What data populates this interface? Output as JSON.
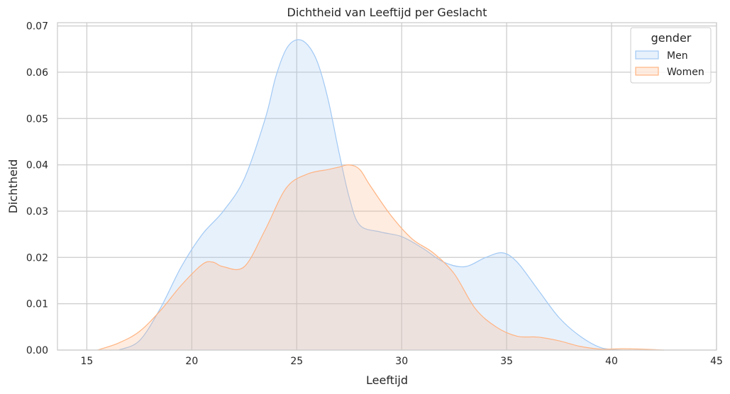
{
  "chart_data": {
    "type": "area",
    "title": "Dichtheid van Leeftijd per Geslacht",
    "xlabel": "Leeftijd",
    "ylabel": "Dichtheid",
    "xlim": [
      13.6,
      45
    ],
    "ylim": [
      0,
      0.0707
    ],
    "xticks": [
      "15",
      "20",
      "25",
      "30",
      "35",
      "40",
      "45"
    ],
    "yticks": [
      "0.00",
      "0.01",
      "0.02",
      "0.03",
      "0.04",
      "0.05",
      "0.06",
      "0.07"
    ],
    "grid": true,
    "legend": {
      "title": "gender",
      "placement": "top-right"
    },
    "series": [
      {
        "name": "Men",
        "color": "#a1c9f4",
        "x": [
          16.5,
          17.5,
          18.5,
          19.5,
          20.5,
          21.5,
          22.5,
          23.5,
          24.0,
          24.5,
          25.0,
          25.5,
          26.0,
          26.5,
          27.0,
          27.5,
          28.0,
          29.0,
          30.0,
          31.0,
          32.0,
          33.0,
          34.0,
          34.8,
          35.5,
          36.5,
          37.5,
          38.5,
          39.5,
          40.5
        ],
        "y": [
          0.0,
          0.002,
          0.009,
          0.018,
          0.025,
          0.03,
          0.037,
          0.05,
          0.059,
          0.065,
          0.067,
          0.066,
          0.062,
          0.054,
          0.043,
          0.033,
          0.027,
          0.0255,
          0.0245,
          0.022,
          0.019,
          0.018,
          0.02,
          0.021,
          0.019,
          0.013,
          0.007,
          0.003,
          0.0005,
          0.0
        ]
      },
      {
        "name": "Women",
        "color": "#ffb482",
        "x": [
          15.5,
          16.5,
          17.5,
          18.5,
          19.5,
          20.5,
          21.0,
          21.5,
          22.5,
          23.5,
          24.5,
          25.5,
          26.5,
          27.0,
          27.5,
          28.0,
          28.5,
          29.5,
          30.5,
          31.5,
          32.5,
          33.5,
          34.5,
          35.5,
          36.5,
          37.5,
          38.5,
          39.5,
          40.5,
          41.5,
          42.5
        ],
        "y": [
          0.0,
          0.0015,
          0.004,
          0.0085,
          0.014,
          0.0185,
          0.019,
          0.018,
          0.018,
          0.026,
          0.035,
          0.038,
          0.039,
          0.0395,
          0.04,
          0.039,
          0.0355,
          0.029,
          0.024,
          0.021,
          0.0165,
          0.009,
          0.005,
          0.003,
          0.0028,
          0.002,
          0.0008,
          0.0002,
          0.0003,
          0.0002,
          0.0
        ]
      }
    ]
  }
}
